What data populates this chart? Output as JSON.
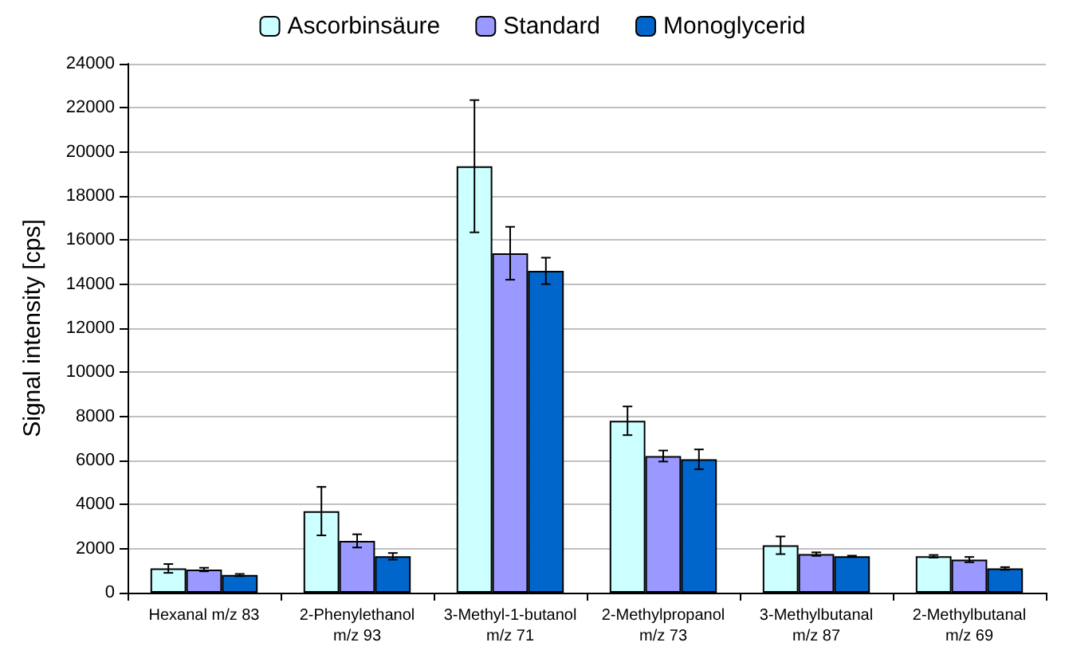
{
  "chart_data": {
    "type": "bar",
    "ylabel": "Signal intensity [cps]",
    "categories": [
      "Hexanal m/z 83",
      "2-Phenylethanol\nm/z 93",
      "3-Methyl-1-butanol\nm/z 71",
      "2-Methylpropanol\nm/z 73",
      "3-Methylbutanal\nm/z 87",
      "2-Methylbutanal\nm/z 69"
    ],
    "series": [
      {
        "name": "Ascorbinsäure",
        "color": "#ccffff",
        "values": [
          1100,
          3700,
          19350,
          7800,
          2150,
          1650
        ],
        "errors": [
          200,
          1100,
          3000,
          650,
          400,
          60
        ]
      },
      {
        "name": "Standard",
        "color": "#9999ff",
        "values": [
          1050,
          2350,
          15400,
          6200,
          1750,
          1500
        ],
        "errors": [
          80,
          300,
          1200,
          250,
          80,
          120
        ]
      },
      {
        "name": "Monoglycerid",
        "color": "#0066cc",
        "values": [
          800,
          1650,
          14600,
          6050,
          1650,
          1100
        ],
        "errors": [
          50,
          150,
          600,
          450,
          30,
          60
        ]
      }
    ],
    "ylim": [
      0,
      24000
    ],
    "yticks": [
      0,
      2000,
      4000,
      6000,
      8000,
      10000,
      12000,
      14000,
      16000,
      18000,
      20000,
      22000,
      24000
    ],
    "grid": "y",
    "legend": "top"
  }
}
